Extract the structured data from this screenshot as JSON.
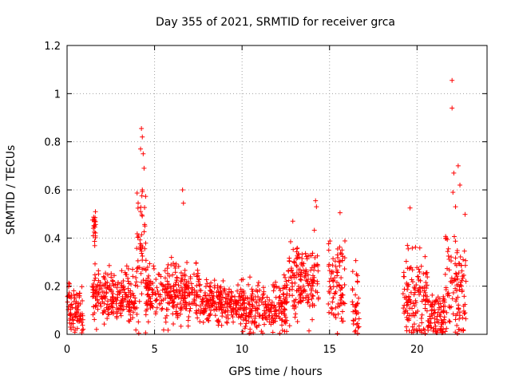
{
  "chart_data": {
    "type": "scatter",
    "title": "Day 355 of 2021, SRMTID for receiver grca",
    "xlabel": "GPS time / hours",
    "ylabel": "SRMTID / TECUs",
    "xlim": [
      0,
      24
    ],
    "ylim": [
      0,
      1.2
    ],
    "xticks": [
      0,
      5,
      10,
      15,
      20
    ],
    "xtick_labels": [
      "0",
      "5",
      "10",
      "15",
      "20"
    ],
    "yticks": [
      0,
      0.2,
      0.4,
      0.6,
      0.8,
      1,
      1.2
    ],
    "ytick_labels": [
      "0",
      "0.2",
      "0.4",
      "0.6",
      "0.8",
      "1",
      "1.2"
    ],
    "grid": true,
    "marker": "+",
    "color": "#ff0000",
    "series": [
      {
        "name": "SRMTID",
        "segments": [
          {
            "t0": 0.0,
            "t1": 0.95,
            "base": 0.1,
            "spread": 0.12
          },
          {
            "t0": 1.45,
            "t1": 1.65,
            "base": 0.44,
            "spread": 0.06
          },
          {
            "t0": 1.45,
            "t1": 3.9,
            "base": 0.16,
            "spread": 0.1
          },
          {
            "t0": 3.9,
            "t1": 4.5,
            "base": 0.3,
            "spread": 0.3
          },
          {
            "t0": 4.5,
            "t1": 7.6,
            "base": 0.17,
            "spread": 0.12
          },
          {
            "t0": 7.6,
            "t1": 10.0,
            "base": 0.13,
            "spread": 0.08
          },
          {
            "t0": 10.0,
            "t1": 12.6,
            "base": 0.12,
            "spread": 0.1
          },
          {
            "t0": 12.6,
            "t1": 14.4,
            "base": 0.22,
            "spread": 0.15
          },
          {
            "t0": 14.9,
            "t1": 15.9,
            "base": 0.2,
            "spread": 0.18
          },
          {
            "t0": 16.3,
            "t1": 16.7,
            "base": 0.12,
            "spread": 0.15
          },
          {
            "t0": 19.2,
            "t1": 20.6,
            "base": 0.15,
            "spread": 0.18
          },
          {
            "t0": 20.6,
            "t1": 21.6,
            "base": 0.08,
            "spread": 0.1
          },
          {
            "t0": 21.6,
            "t1": 22.8,
            "base": 0.2,
            "spread": 0.25
          }
        ],
        "highlights": [
          {
            "x": 4.25,
            "y": 0.855
          },
          {
            "x": 4.3,
            "y": 0.82
          },
          {
            "x": 4.2,
            "y": 0.77
          },
          {
            "x": 4.35,
            "y": 0.75
          },
          {
            "x": 4.4,
            "y": 0.69
          },
          {
            "x": 4.3,
            "y": 0.6
          },
          {
            "x": 4.2,
            "y": 0.51
          },
          {
            "x": 4.45,
            "y": 0.45
          },
          {
            "x": 6.6,
            "y": 0.6
          },
          {
            "x": 6.65,
            "y": 0.545
          },
          {
            "x": 14.2,
            "y": 0.555
          },
          {
            "x": 14.25,
            "y": 0.53
          },
          {
            "x": 15.6,
            "y": 0.505
          },
          {
            "x": 19.6,
            "y": 0.525
          },
          {
            "x": 22.0,
            "y": 1.055
          },
          {
            "x": 22.0,
            "y": 0.94
          },
          {
            "x": 22.35,
            "y": 0.7
          },
          {
            "x": 22.1,
            "y": 0.67
          },
          {
            "x": 22.45,
            "y": 0.62
          },
          {
            "x": 22.05,
            "y": 0.59
          },
          {
            "x": 22.2,
            "y": 0.53
          },
          {
            "x": 1.6,
            "y": 0.485
          },
          {
            "x": 1.55,
            "y": 0.47
          },
          {
            "x": 12.9,
            "y": 0.47
          }
        ]
      }
    ]
  }
}
